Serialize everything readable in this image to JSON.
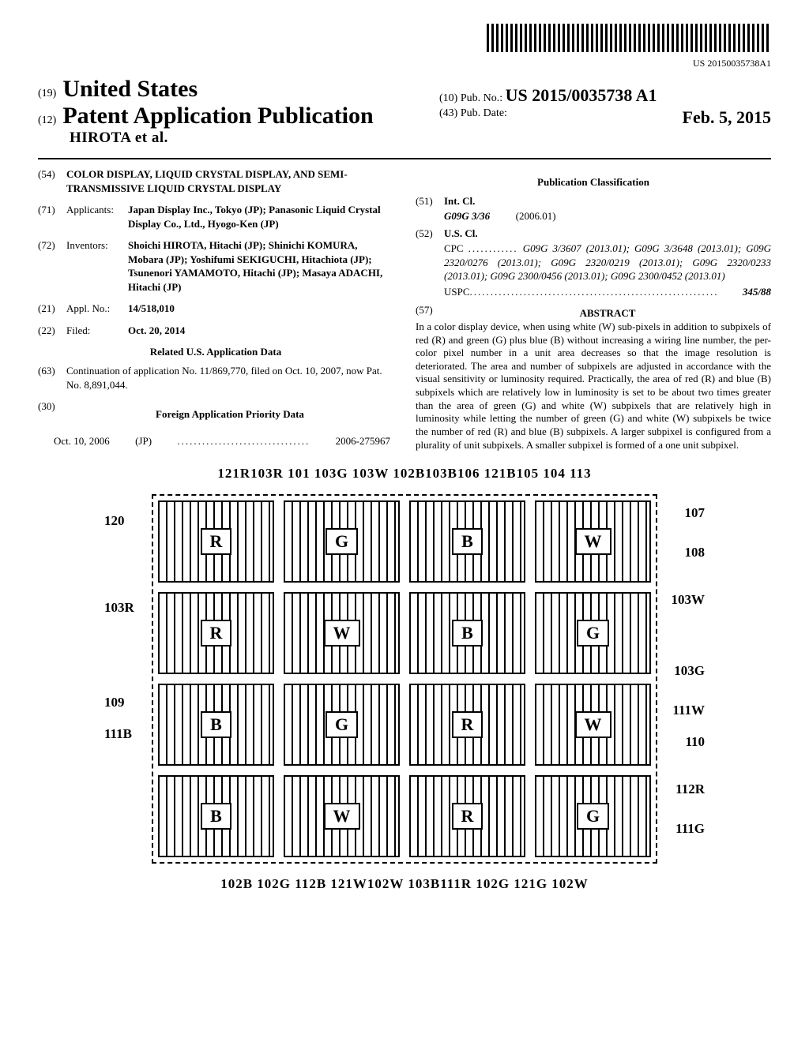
{
  "barcode_text": "US 20150035738A1",
  "header": {
    "code19": "(19)",
    "country": "United States",
    "code12": "(12)",
    "doc_type": "Patent Application Publication",
    "inventor_short": "HIROTA et al.",
    "code10": "(10)",
    "pub_no_label": "Pub. No.:",
    "pub_no": "US 2015/0035738 A1",
    "code43": "(43)",
    "pub_date_label": "Pub. Date:",
    "pub_date": "Feb. 5, 2015"
  },
  "left": {
    "title_code": "(54)",
    "title": "COLOR DISPLAY, LIQUID CRYSTAL DISPLAY, AND SEMI-TRANSMISSIVE LIQUID CRYSTAL DISPLAY",
    "applicants_code": "(71)",
    "applicants_label": "Applicants:",
    "applicants_body": "Japan Display Inc., Tokyo (JP); Panasonic Liquid Crystal Display Co., Ltd., Hyogo-Ken (JP)",
    "inventors_code": "(72)",
    "inventors_label": "Inventors:",
    "inventors_body": "Shoichi HIROTA, Hitachi (JP); Shinichi KOMURA, Mobara (JP); Yoshifumi SEKIGUCHI, Hitachiota (JP); Tsunenori YAMAMOTO, Hitachi (JP); Masaya ADACHI, Hitachi (JP)",
    "appl_code": "(21)",
    "appl_label": "Appl. No.:",
    "appl_no": "14/518,010",
    "filed_code": "(22)",
    "filed_label": "Filed:",
    "filed_date": "Oct. 20, 2014",
    "related_head": "Related U.S. Application Data",
    "cont_code": "(63)",
    "cont_body": "Continuation of application No. 11/869,770, filed on Oct. 10, 2007, now Pat. No. 8,891,044.",
    "foreign_code": "(30)",
    "foreign_head": "Foreign Application Priority Data",
    "foreign_date": "Oct. 10, 2006",
    "foreign_country": "(JP)",
    "foreign_dots": "................................",
    "foreign_num": "2006-275967"
  },
  "right": {
    "class_head": "Publication Classification",
    "intcl_code": "(51)",
    "intcl_label": "Int. Cl.",
    "intcl_val": "G09G 3/36",
    "intcl_year": "(2006.01)",
    "uscl_code": "(52)",
    "uscl_label": "U.S. Cl.",
    "cpc_label": "CPC",
    "cpc_dots": "............",
    "cpc_body": "G09G 3/3607 (2013.01); G09G 3/3648 (2013.01); G09G 2320/0276 (2013.01); G09G 2320/0219 (2013.01); G09G 2320/0233 (2013.01); G09G 2300/0456 (2013.01); G09G 2300/0452 (2013.01)",
    "uspc_label": "USPC",
    "uspc_dots": "............................................................",
    "uspc_val": "345/88",
    "abstract_code": "(57)",
    "abstract_head": "ABSTRACT",
    "abstract_text": "In a color display device, when using white (W) sub-pixels in addition to subpixels of red (R) and green (G) plus blue (B) without increasing a wiring line number, the per-color pixel number in a unit area decreases so that the image resolution is deteriorated. The area and number of subpixels are adjusted in accordance with the visual sensitivity or luminosity required. Practically, the area of red (R) and blue (B) subpixels which are relatively low in luminosity is set to be about two times greater than the area of green (G) and white (W) subpixels that are relatively high in luminosity while letting the number of green (G) and white (W) subpixels be twice the number of red (R) and blue (B) subpixels. A larger subpixel is configured from a plurality of unit subpixels. A smaller subpixel is formed of a one unit subpixel."
  },
  "figure": {
    "top_labels": "121R103R 101   103G 103W 102B103B106 121B105 104 113",
    "bottom_labels": "102B      102G 112B  121W102W  103B111R  102G 121G  102W",
    "rows": [
      [
        "R",
        "G",
        "B",
        "W"
      ],
      [
        "R",
        "W",
        "B",
        "G"
      ],
      [
        "B",
        "G",
        "R",
        "W"
      ],
      [
        "B",
        "W",
        "R",
        "G"
      ]
    ],
    "left_side": [
      "120",
      "103R",
      "109",
      "111B"
    ],
    "right_side": [
      "107",
      "108",
      "103W",
      "103G",
      "111W",
      "110",
      "112R",
      "111G"
    ]
  }
}
